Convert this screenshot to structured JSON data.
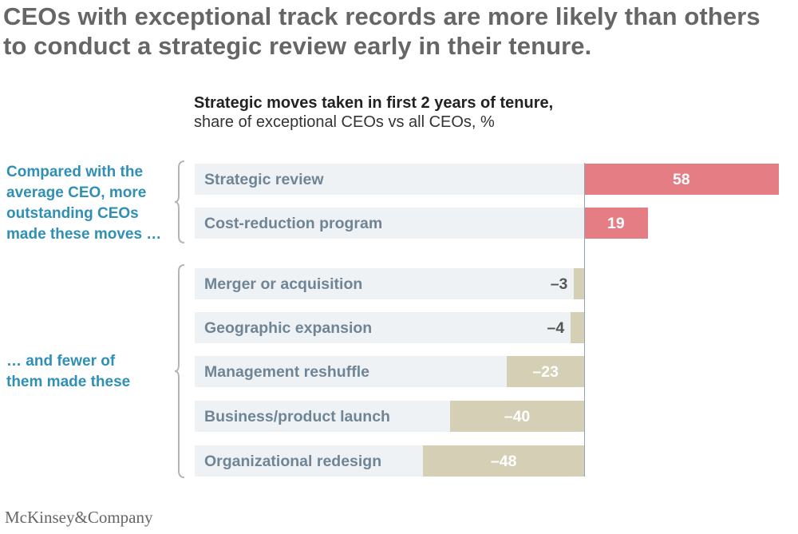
{
  "title": {
    "line1": "CEOs with exceptional track records are more likely than others",
    "line2": "to conduct a strategic review early in their tenure."
  },
  "annotations": {
    "top": [
      "Compared with the",
      "average CEO, more",
      "outstanding CEOs",
      "made these moves …"
    ],
    "bottom": [
      "… and fewer of",
      "them made these"
    ]
  },
  "footer": "McKinsey&Company",
  "colors": {
    "positive_bar": "#e57e84",
    "negative_bar": "#d4cfb5",
    "label_background": "#eff2f4",
    "annotation_text": "#2f8fb5",
    "category_text": "#6f8596"
  },
  "chart_data": {
    "type": "bar",
    "orientation": "horizontal",
    "title": "Strategic moves taken in first 2 years of tenure,",
    "subtitle": "share of exceptional CEOs vs all CEOs, %",
    "categories": [
      "Strategic review",
      "Cost-reduction program",
      "Merger or acquisition",
      "Geographic expansion",
      "Management reshuffle",
      "Business/product launch",
      "Organizational redesign"
    ],
    "values": [
      58,
      19,
      -3,
      -4,
      -23,
      -40,
      -48
    ],
    "value_labels": [
      "58",
      "19",
      "–3",
      "–4",
      "–23",
      "–40",
      "–48"
    ],
    "xlim": [
      -50,
      60
    ],
    "groups": [
      {
        "annotation": "top",
        "categories": [
          "Strategic review",
          "Cost-reduction program"
        ]
      },
      {
        "annotation": "bottom",
        "categories": [
          "Merger or acquisition",
          "Geographic expansion",
          "Management reshuffle",
          "Business/product launch",
          "Organizational redesign"
        ]
      }
    ],
    "grid": false,
    "legend": "none"
  }
}
